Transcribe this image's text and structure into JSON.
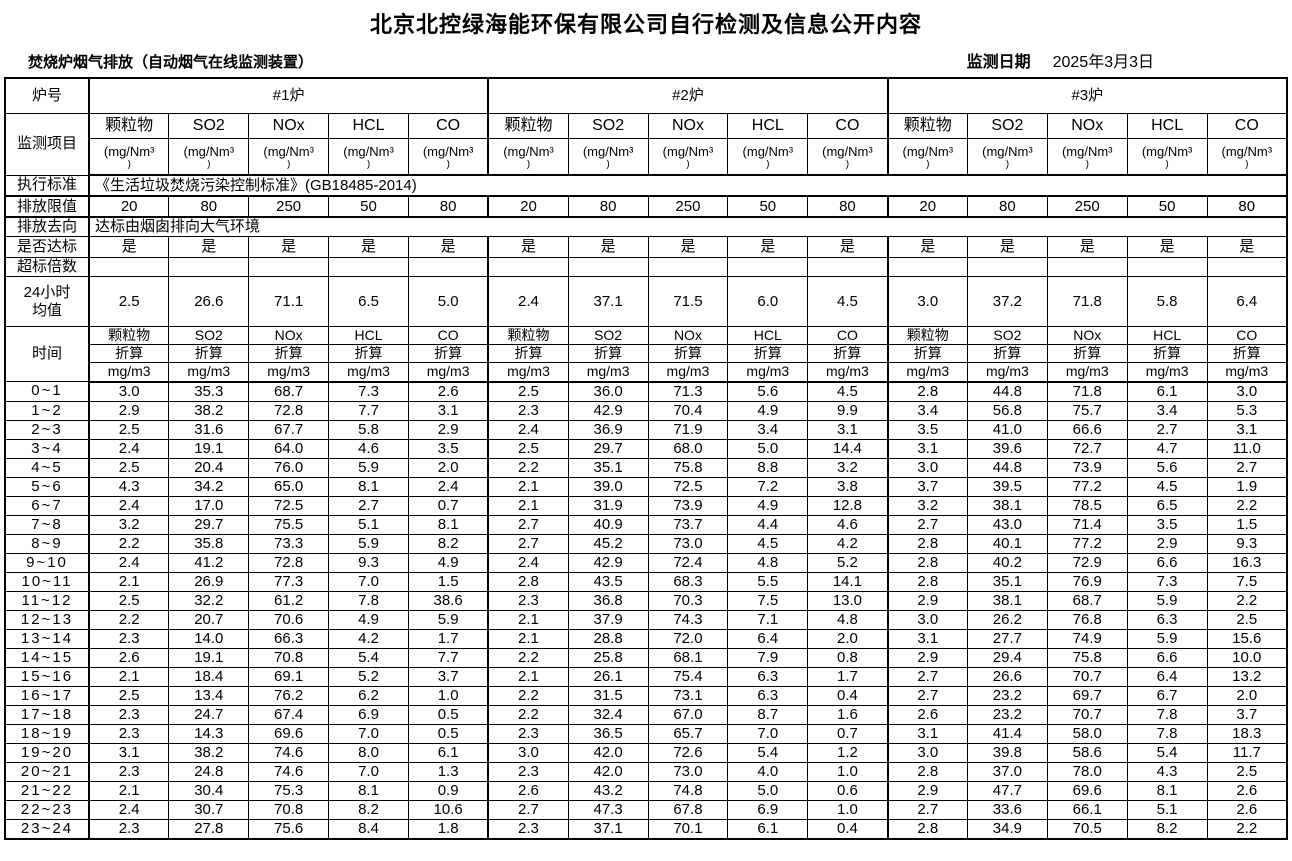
{
  "title": "北京北控绿海能环保有限公司自行检测及信息公开内容",
  "subtitle": "焚烧炉烟气排放（自动烟气在线监测装置）",
  "monitor_date_label": "监测日期",
  "monitor_date": "2025年3月3日",
  "table": {
    "row_labels": {
      "furnace_no": "炉号",
      "monitor_items": "监测项目",
      "standard": "执行标准",
      "emission_limit": "排放限值",
      "emission_destination": "排放去向",
      "compliance": "是否达标",
      "exceed_multiple": "超标倍数",
      "daily_avg_lines": [
        "24小时",
        "均值"
      ],
      "time": "时间"
    },
    "furnaces": [
      "#1炉",
      "#2炉",
      "#3炉"
    ],
    "pollutants": [
      "颗粒物",
      "SO2",
      "NOx",
      "HCL",
      "CO"
    ],
    "unit_line1": "(mg/Nm³",
    "unit_line2": ")",
    "standard_value": "《生活垃圾焚烧污染控制标准》(GB18485-2014)",
    "emission_limits": [
      "20",
      "80",
      "250",
      "50",
      "80"
    ],
    "destination_value": "达标由烟囱排向大气环境",
    "compliance_value": "是",
    "exceed_value": "",
    "daily_avg_values": [
      [
        "2.5",
        "26.6",
        "71.1",
        "6.5",
        "5.0"
      ],
      [
        "2.4",
        "37.1",
        "71.5",
        "6.0",
        "4.5"
      ],
      [
        "3.0",
        "37.2",
        "71.8",
        "5.8",
        "6.4"
      ]
    ],
    "hourly_subheader": {
      "converted": "折算",
      "unit": "mg/m3"
    },
    "hourly_rows": [
      {
        "time": "0~1",
        "values": [
          [
            "3.0",
            "35.3",
            "68.7",
            "7.3",
            "2.6"
          ],
          [
            "2.5",
            "36.0",
            "71.3",
            "5.6",
            "4.5"
          ],
          [
            "2.8",
            "44.8",
            "71.8",
            "6.1",
            "3.0"
          ]
        ]
      },
      {
        "time": "1~2",
        "values": [
          [
            "2.9",
            "38.2",
            "72.8",
            "7.7",
            "3.1"
          ],
          [
            "2.3",
            "42.9",
            "70.4",
            "4.9",
            "9.9"
          ],
          [
            "3.4",
            "56.8",
            "75.7",
            "3.4",
            "5.3"
          ]
        ]
      },
      {
        "time": "2~3",
        "values": [
          [
            "2.5",
            "31.6",
            "67.7",
            "5.8",
            "2.9"
          ],
          [
            "2.4",
            "36.9",
            "71.9",
            "3.4",
            "3.1"
          ],
          [
            "3.5",
            "41.0",
            "66.6",
            "2.7",
            "3.1"
          ]
        ]
      },
      {
        "time": "3~4",
        "values": [
          [
            "2.4",
            "19.1",
            "64.0",
            "4.6",
            "3.5"
          ],
          [
            "2.5",
            "29.7",
            "68.0",
            "5.0",
            "14.4"
          ],
          [
            "3.1",
            "39.6",
            "72.7",
            "4.7",
            "11.0"
          ]
        ]
      },
      {
        "time": "4~5",
        "values": [
          [
            "2.5",
            "20.4",
            "76.0",
            "5.9",
            "2.0"
          ],
          [
            "2.2",
            "35.1",
            "75.8",
            "8.8",
            "3.2"
          ],
          [
            "3.0",
            "44.8",
            "73.9",
            "5.6",
            "2.7"
          ]
        ]
      },
      {
        "time": "5~6",
        "values": [
          [
            "4.3",
            "34.2",
            "65.0",
            "8.1",
            "2.4"
          ],
          [
            "2.1",
            "39.0",
            "72.5",
            "7.2",
            "3.8"
          ],
          [
            "3.7",
            "39.5",
            "77.2",
            "4.5",
            "1.9"
          ]
        ]
      },
      {
        "time": "6~7",
        "values": [
          [
            "2.4",
            "17.0",
            "72.5",
            "2.7",
            "0.7"
          ],
          [
            "2.1",
            "31.9",
            "73.9",
            "4.9",
            "12.8"
          ],
          [
            "3.2",
            "38.1",
            "78.5",
            "6.5",
            "2.2"
          ]
        ]
      },
      {
        "time": "7~8",
        "values": [
          [
            "3.2",
            "29.7",
            "75.5",
            "5.1",
            "8.1"
          ],
          [
            "2.7",
            "40.9",
            "73.7",
            "4.4",
            "4.6"
          ],
          [
            "2.7",
            "43.0",
            "71.4",
            "3.5",
            "1.5"
          ]
        ]
      },
      {
        "time": "8~9",
        "values": [
          [
            "2.2",
            "35.8",
            "73.3",
            "5.9",
            "8.2"
          ],
          [
            "2.7",
            "45.2",
            "73.0",
            "4.5",
            "4.2"
          ],
          [
            "2.8",
            "40.1",
            "77.2",
            "2.9",
            "9.3"
          ]
        ]
      },
      {
        "time": "9~10",
        "values": [
          [
            "2.4",
            "41.2",
            "72.8",
            "9.3",
            "4.9"
          ],
          [
            "2.4",
            "42.9",
            "72.4",
            "4.8",
            "5.2"
          ],
          [
            "2.8",
            "40.2",
            "72.9",
            "6.6",
            "16.3"
          ]
        ]
      },
      {
        "time": "10~11",
        "values": [
          [
            "2.1",
            "26.9",
            "77.3",
            "7.0",
            "1.5"
          ],
          [
            "2.8",
            "43.5",
            "68.3",
            "5.5",
            "14.1"
          ],
          [
            "2.8",
            "35.1",
            "76.9",
            "7.3",
            "7.5"
          ]
        ]
      },
      {
        "time": "11~12",
        "values": [
          [
            "2.5",
            "32.2",
            "61.2",
            "7.8",
            "38.6"
          ],
          [
            "2.3",
            "36.8",
            "70.3",
            "7.5",
            "13.0"
          ],
          [
            "2.9",
            "38.1",
            "68.7",
            "5.9",
            "2.2"
          ]
        ]
      },
      {
        "time": "12~13",
        "values": [
          [
            "2.2",
            "20.7",
            "70.6",
            "4.9",
            "5.9"
          ],
          [
            "2.1",
            "37.9",
            "74.3",
            "7.1",
            "4.8"
          ],
          [
            "3.0",
            "26.2",
            "76.8",
            "6.3",
            "2.5"
          ]
        ]
      },
      {
        "time": "13~14",
        "values": [
          [
            "2.3",
            "14.0",
            "66.3",
            "4.2",
            "1.7"
          ],
          [
            "2.1",
            "28.8",
            "72.0",
            "6.4",
            "2.0"
          ],
          [
            "3.1",
            "27.7",
            "74.9",
            "5.9",
            "15.6"
          ]
        ]
      },
      {
        "time": "14~15",
        "values": [
          [
            "2.6",
            "19.1",
            "70.8",
            "5.4",
            "7.7"
          ],
          [
            "2.2",
            "25.8",
            "68.1",
            "7.9",
            "0.8"
          ],
          [
            "2.9",
            "29.4",
            "75.8",
            "6.6",
            "10.0"
          ]
        ]
      },
      {
        "time": "15~16",
        "values": [
          [
            "2.1",
            "18.4",
            "69.1",
            "5.2",
            "3.7"
          ],
          [
            "2.1",
            "26.1",
            "75.4",
            "6.3",
            "1.7"
          ],
          [
            "2.7",
            "26.6",
            "70.7",
            "6.4",
            "13.2"
          ]
        ]
      },
      {
        "time": "16~17",
        "values": [
          [
            "2.5",
            "13.4",
            "76.2",
            "6.2",
            "1.0"
          ],
          [
            "2.2",
            "31.5",
            "73.1",
            "6.3",
            "0.4"
          ],
          [
            "2.7",
            "23.2",
            "69.7",
            "6.7",
            "2.0"
          ]
        ]
      },
      {
        "time": "17~18",
        "values": [
          [
            "2.3",
            "24.7",
            "67.4",
            "6.9",
            "0.5"
          ],
          [
            "2.2",
            "32.4",
            "67.0",
            "8.7",
            "1.6"
          ],
          [
            "2.6",
            "23.2",
            "70.7",
            "7.8",
            "3.7"
          ]
        ]
      },
      {
        "time": "18~19",
        "values": [
          [
            "2.3",
            "14.3",
            "69.6",
            "7.0",
            "0.5"
          ],
          [
            "2.3",
            "36.5",
            "65.7",
            "7.0",
            "0.7"
          ],
          [
            "3.1",
            "41.4",
            "58.0",
            "7.8",
            "18.3"
          ]
        ]
      },
      {
        "time": "19~20",
        "values": [
          [
            "3.1",
            "38.2",
            "74.6",
            "8.0",
            "6.1"
          ],
          [
            "3.0",
            "42.0",
            "72.6",
            "5.4",
            "1.2"
          ],
          [
            "3.0",
            "39.8",
            "58.6",
            "5.4",
            "11.7"
          ]
        ]
      },
      {
        "time": "20~21",
        "values": [
          [
            "2.3",
            "24.8",
            "74.6",
            "7.0",
            "1.3"
          ],
          [
            "2.3",
            "42.0",
            "73.0",
            "4.0",
            "1.0"
          ],
          [
            "2.8",
            "37.0",
            "78.0",
            "4.3",
            "2.5"
          ]
        ]
      },
      {
        "time": "21~22",
        "values": [
          [
            "2.1",
            "30.4",
            "75.3",
            "8.1",
            "0.9"
          ],
          [
            "2.6",
            "43.2",
            "74.8",
            "5.0",
            "0.6"
          ],
          [
            "2.9",
            "47.7",
            "69.6",
            "8.1",
            "2.6"
          ]
        ]
      },
      {
        "time": "22~23",
        "values": [
          [
            "2.4",
            "30.7",
            "70.8",
            "8.2",
            "10.6"
          ],
          [
            "2.7",
            "47.3",
            "67.8",
            "6.9",
            "1.0"
          ],
          [
            "2.7",
            "33.6",
            "66.1",
            "5.1",
            "2.6"
          ]
        ]
      },
      {
        "time": "23~24",
        "values": [
          [
            "2.3",
            "27.8",
            "75.6",
            "8.4",
            "1.8"
          ],
          [
            "2.3",
            "37.1",
            "70.1",
            "6.1",
            "0.4"
          ],
          [
            "2.8",
            "34.9",
            "70.5",
            "8.2",
            "2.2"
          ]
        ]
      }
    ]
  }
}
